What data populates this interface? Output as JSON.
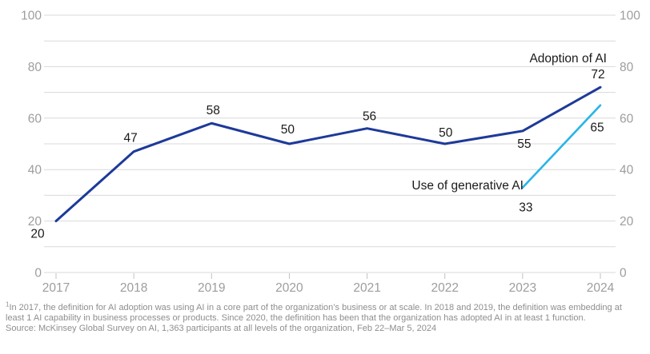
{
  "chart_data": {
    "type": "line",
    "title": "",
    "xlabel": "",
    "ylabel": "",
    "x_categories": [
      "2017",
      "2018",
      "2019",
      "2020",
      "2021",
      "2022",
      "2023",
      "2024"
    ],
    "ylim": [
      0,
      100
    ],
    "y_minor_step": 10,
    "y_labeled_ticks": [
      0,
      20,
      40,
      60,
      80,
      100
    ],
    "grid": true,
    "dual_y_axis_labels": true,
    "legend_position": "inline-annotations",
    "colors": {
      "gridline": "#d9d9d9",
      "axis_tick": "#c2c2c2",
      "axis_text": "#9d9d9d",
      "data_label_text": "#1a1a1a"
    },
    "series": [
      {
        "name": "Adoption of AI",
        "color": "#1d3a99",
        "stroke_width": 3,
        "x": [
          "2017",
          "2018",
          "2019",
          "2020",
          "2021",
          "2022",
          "2023",
          "2024"
        ],
        "values": [
          20,
          47,
          58,
          50,
          56,
          50,
          55,
          72
        ],
        "label_offsets": [
          [
            -23,
            21
          ],
          [
            -4,
            -12
          ],
          [
            2,
            -11
          ],
          [
            -2,
            -13
          ],
          [
            3,
            -10
          ],
          [
            1,
            -9
          ],
          [
            2,
            21
          ],
          [
            -3,
            -11
          ]
        ],
        "annotation": {
          "text": "Adoption of AI",
          "anchor": "end",
          "ax": 758,
          "ay": 78
        }
      },
      {
        "name": "Use of generative AI",
        "color": "#29b5e8",
        "stroke_width": 2.6,
        "x": [
          "2023",
          "2024"
        ],
        "values": [
          33,
          65
        ],
        "label_offsets": [
          [
            4,
            30
          ],
          [
            -4,
            33
          ]
        ],
        "annotation": {
          "text": "Use of generative AI",
          "anchor": "end",
          "ax": 654,
          "ay": 237
        }
      }
    ]
  },
  "footnote": {
    "marker": "1",
    "text": "In 2017, the definition for AI adoption was using AI in a core part of the organization’s business or at scale. In 2018 and 2019, the definition was embedding at least 1 AI capability in business processes or products. Since 2020, the definition has been that the organization has adopted AI in at least 1 function.",
    "source": "Source: McKinsey Global Survey on AI, 1,363 participants at all levels of the organization, Feb 22–Mar 5, 2024"
  }
}
